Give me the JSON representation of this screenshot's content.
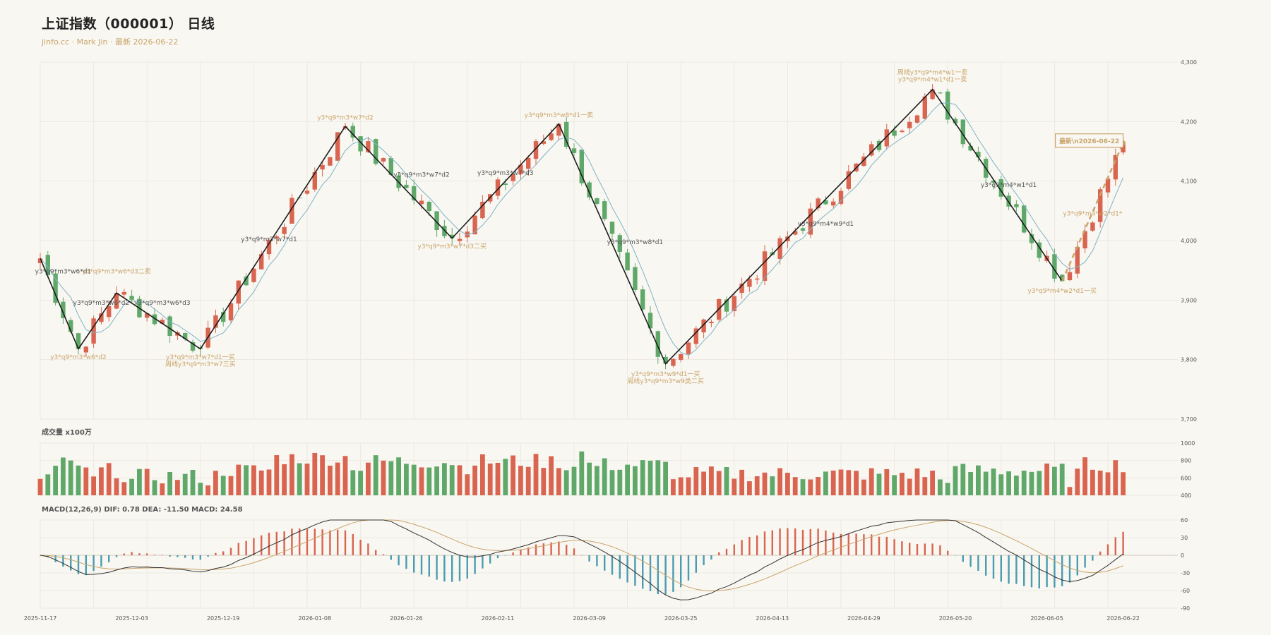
{
  "title": "上证指数（000001） 日线",
  "subtitle": "jinfo.cc · Mark Jin · 最新 2026-06-22",
  "colors": {
    "up": "#d9644f",
    "down": "#5fa86a",
    "ma": "#7fb3c5",
    "zigzag": "#1c1c1c",
    "predict": "#c9a46a",
    "dea": "#c9a46a",
    "dif": "#333333",
    "hist_pos": "#d9644f",
    "hist_neg": "#4a9cb0",
    "ann_gold": "#c9a46a",
    "ann_gray": "#555555"
  },
  "chart_data": {
    "type": "candlestick",
    "y_ticks": [
      3700,
      3800,
      3900,
      4000,
      4100,
      4200,
      4300
    ],
    "y_tick_labels": [
      "3,700",
      "3,800",
      "3,900",
      "4,000",
      "4,100",
      "4,200",
      "4,300"
    ],
    "ylim": [
      3700,
      4300
    ],
    "x_tick_labels": [
      {
        "i": 0,
        "label": "2025-11-17"
      },
      {
        "i": 12,
        "label": "2025-12-03"
      },
      {
        "i": 24,
        "label": "2025-12-19"
      },
      {
        "i": 36,
        "label": "2026-01-08"
      },
      {
        "i": 48,
        "label": "2026-01-26"
      },
      {
        "i": 60,
        "label": "2026-02-11"
      },
      {
        "i": 72,
        "label": "2026-03-09"
      },
      {
        "i": 84,
        "label": "2026-03-25"
      },
      {
        "i": 96,
        "label": "2026-04-13"
      },
      {
        "i": 108,
        "label": "2026-04-29"
      },
      {
        "i": 120,
        "label": "2026-05-20"
      },
      {
        "i": 132,
        "label": "2026-06-05"
      },
      {
        "i": 142,
        "label": "2026-06-22"
      }
    ],
    "pivots": [
      {
        "i": 0,
        "v": 3970
      },
      {
        "i": 5,
        "v": 3818
      },
      {
        "i": 10,
        "v": 3912
      },
      {
        "i": 21,
        "v": 3818
      },
      {
        "i": 40,
        "v": 4192
      },
      {
        "i": 54,
        "v": 4004
      },
      {
        "i": 68,
        "v": 4196
      },
      {
        "i": 82,
        "v": 3793
      },
      {
        "i": 117,
        "v": 4254
      },
      {
        "i": 134,
        "v": 3932
      }
    ],
    "prediction": {
      "from_i": 134,
      "from_v": 3932,
      "to_i": 142,
      "to_v": 4164
    },
    "latest_label": "最新\\n2026-06-22",
    "annotations": [
      {
        "i": 3,
        "v": 3948,
        "dy": 0,
        "text": "y3*q9*m3*w6*d1",
        "color": "gray"
      },
      {
        "i": 10,
        "v": 3948,
        "dy": 0,
        "text": "y3*q9*m3*w6*d3二卖",
        "color": "gold"
      },
      {
        "i": 5,
        "v": 3818,
        "dy": 12,
        "text": "y3*q9*m3*w6*d2",
        "color": "gold"
      },
      {
        "i": 8,
        "v": 3895,
        "dy": 0,
        "text": "y3*q9*m3*w6*d2",
        "color": "gray"
      },
      {
        "i": 16,
        "v": 3895,
        "dy": 0,
        "text": "y3*q9*m3*w6*d3",
        "color": "gray"
      },
      {
        "i": 21,
        "v": 3818,
        "dy": 12,
        "text": "y3*q9*m3*w7*d1一买",
        "color": "gold"
      },
      {
        "i": 21,
        "v": 3818,
        "dy": 22,
        "text": "周线y3*q9*m3*w7三买",
        "color": "gold"
      },
      {
        "i": 30,
        "v": 4002,
        "dy": 0,
        "text": "y3*q9*m3*w7*d1",
        "color": "gray"
      },
      {
        "i": 40,
        "v": 4192,
        "dy": -12,
        "text": "y3*q9*m3*w7*d2",
        "color": "gold"
      },
      {
        "i": 50,
        "v": 4110,
        "dy": 0,
        "text": "y3*q9*m3*w7*d2",
        "color": "gray"
      },
      {
        "i": 54,
        "v": 4004,
        "dy": 12,
        "text": "y3*q9*m3*w7*d3二买",
        "color": "gold"
      },
      {
        "i": 61,
        "v": 4113,
        "dy": 0,
        "text": "y3*q9*m3*w7*d3",
        "color": "gray"
      },
      {
        "i": 68,
        "v": 4196,
        "dy": -12,
        "text": "y3*q9*m3*w8*d1一卖",
        "color": "gold"
      },
      {
        "i": 78,
        "v": 3997,
        "dy": 0,
        "text": "y3*q9*m3*w8*d1",
        "color": "gray"
      },
      {
        "i": 82,
        "v": 3793,
        "dy": 15,
        "text": "y3*q9*m3*w9*d1一买",
        "color": "gold"
      },
      {
        "i": 82,
        "v": 3793,
        "dy": 25,
        "text": "周线y3*q9*m3*w9类二买",
        "color": "gold"
      },
      {
        "i": 103,
        "v": 4028,
        "dy": 0,
        "text": "y3*q9*m4*w9*d1",
        "color": "gray"
      },
      {
        "i": 117,
        "v": 4254,
        "dy": -24,
        "text": "周线y3*q9*m4*w1一卖",
        "color": "gold"
      },
      {
        "i": 117,
        "v": 4254,
        "dy": -14,
        "text": "y3*q9*m4*w1*d1一卖",
        "color": "gold"
      },
      {
        "i": 127,
        "v": 4093,
        "dy": 0,
        "text": "y3*q9*m4*w1*d1",
        "color": "gray"
      },
      {
        "i": 134,
        "v": 3932,
        "dy": 14,
        "text": "y3*q9*m4*w2*d1一买",
        "color": "gold"
      },
      {
        "i": 138,
        "v": 4045,
        "dy": 0,
        "text": "y3*q9*m4*w2*d1*",
        "color": "gold"
      }
    ]
  },
  "volume": {
    "label": "成交量 x100万",
    "y_ticks": [
      400,
      600,
      800,
      1000
    ],
    "y_tick_labels": [
      "400",
      "600",
      "800",
      "1000"
    ],
    "ylim": [
      400,
      1000
    ]
  },
  "macd": {
    "label": "MACD(12,26,9) DIF: 0.78 DEA: -11.50 MACD: 24.58",
    "y_ticks": [
      -90,
      -60,
      -30,
      0,
      30,
      60
    ],
    "y_tick_labels": [
      "-90",
      "-60",
      "-30",
      "0",
      "30",
      "60"
    ],
    "ylim": [
      -90,
      60
    ]
  }
}
